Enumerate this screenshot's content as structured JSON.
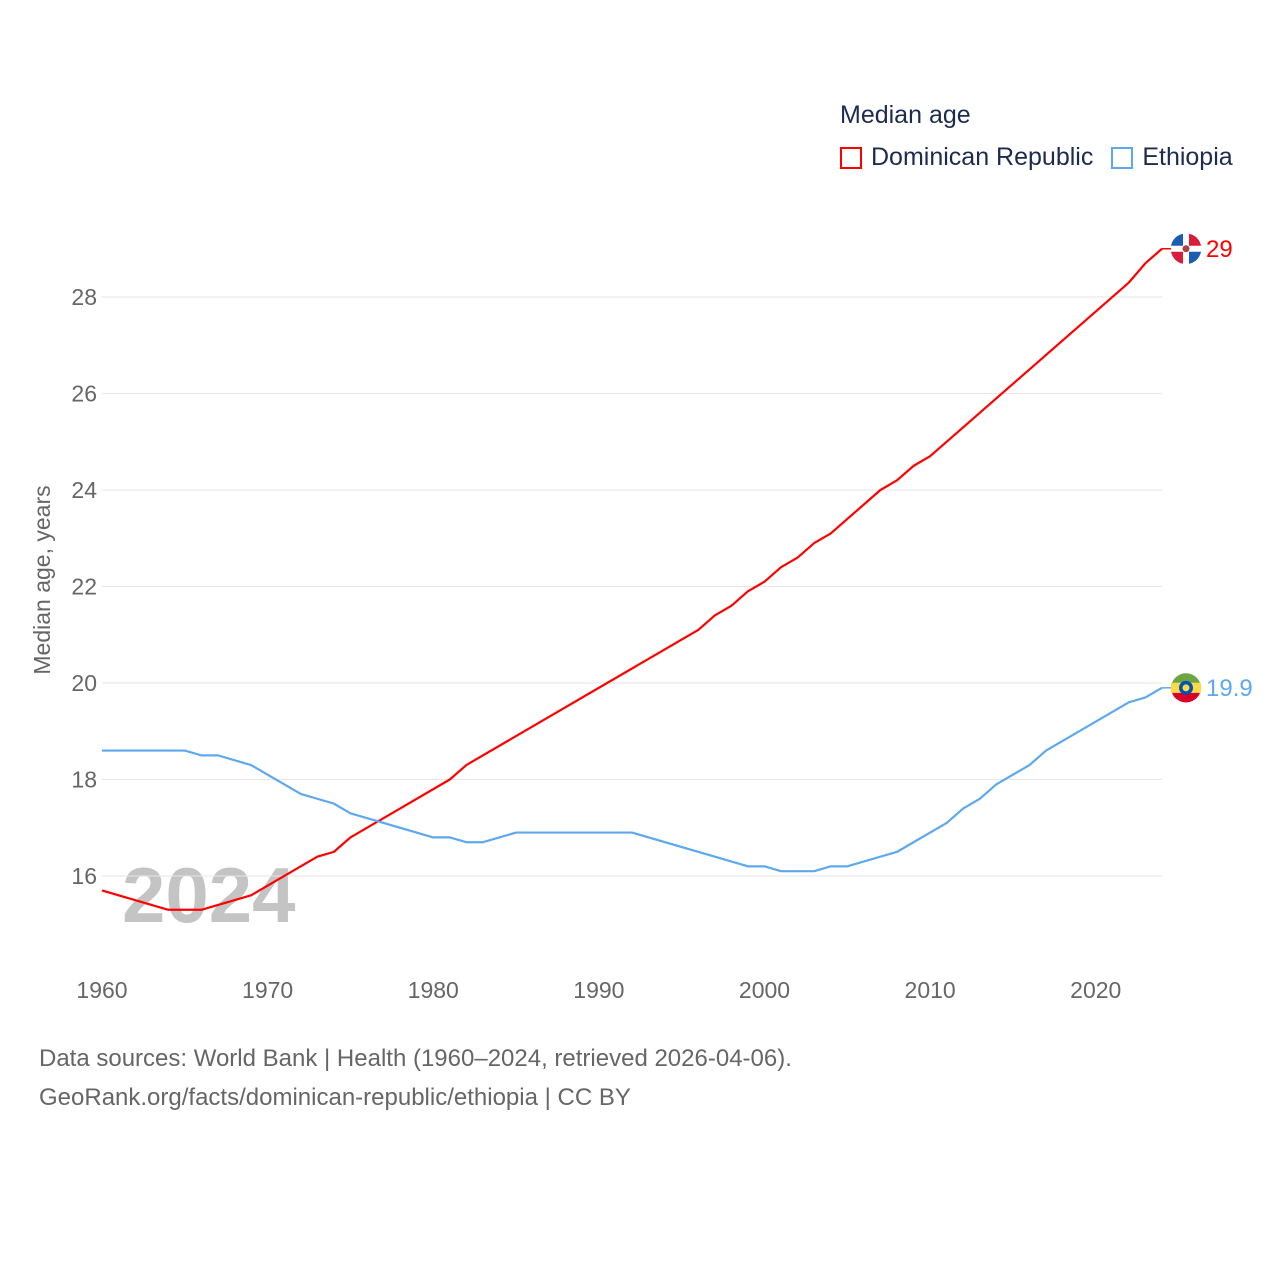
{
  "chart_data": {
    "type": "line",
    "title": "Median age",
    "ylabel": "Median age, years",
    "xlabel": "",
    "xlim": [
      1960,
      2024
    ],
    "ylim": [
      14.2,
      29.5
    ],
    "yticks": [
      16,
      18,
      20,
      22,
      24,
      26,
      28
    ],
    "xticks": [
      1960,
      1970,
      1980,
      1990,
      2000,
      2010,
      2020
    ],
    "year_watermark": "2024",
    "grid": true,
    "legend_position": "top-right",
    "series": [
      {
        "name": "Dominican Republic",
        "color": "#ff0000",
        "end_label": "29",
        "points": [
          [
            1960,
            15.7
          ],
          [
            1964,
            15.3
          ],
          [
            1966,
            15.3
          ],
          [
            1969,
            15.6
          ],
          [
            1973,
            16.4
          ],
          [
            1974,
            16.5
          ],
          [
            1975,
            16.8
          ],
          [
            1981,
            18.0
          ],
          [
            1982,
            18.3
          ],
          [
            1996,
            21.1
          ],
          [
            1997,
            21.4
          ],
          [
            1998,
            21.6
          ],
          [
            1999,
            21.9
          ],
          [
            2000,
            22.1
          ],
          [
            2001,
            22.4
          ],
          [
            2002,
            22.6
          ],
          [
            2003,
            22.9
          ],
          [
            2004,
            23.1
          ],
          [
            2007,
            24.0
          ],
          [
            2008,
            24.2
          ],
          [
            2009,
            24.5
          ],
          [
            2010,
            24.7
          ],
          [
            2022,
            28.3
          ],
          [
            2023,
            28.7
          ],
          [
            2024,
            29.0
          ]
        ]
      },
      {
        "name": "Ethiopia",
        "color": "#5ea8ee",
        "end_label": "19.9",
        "points": [
          [
            1960,
            18.6
          ],
          [
            1965,
            18.6
          ],
          [
            1966,
            18.5
          ],
          [
            1967,
            18.5
          ],
          [
            1969,
            18.3
          ],
          [
            1972,
            17.7
          ],
          [
            1974,
            17.5
          ],
          [
            1975,
            17.3
          ],
          [
            1980,
            16.8
          ],
          [
            1981,
            16.8
          ],
          [
            1982,
            16.7
          ],
          [
            1983,
            16.7
          ],
          [
            1985,
            16.9
          ],
          [
            1992,
            16.9
          ],
          [
            1999,
            16.2
          ],
          [
            2000,
            16.2
          ],
          [
            2001,
            16.1
          ],
          [
            2003,
            16.1
          ],
          [
            2004,
            16.2
          ],
          [
            2005,
            16.2
          ],
          [
            2008,
            16.5
          ],
          [
            2011,
            17.1
          ],
          [
            2012,
            17.4
          ],
          [
            2013,
            17.6
          ],
          [
            2014,
            17.9
          ],
          [
            2016,
            18.3
          ],
          [
            2017,
            18.6
          ],
          [
            2022,
            19.6
          ],
          [
            2023,
            19.7
          ],
          [
            2024,
            19.9
          ]
        ]
      }
    ]
  },
  "sources": {
    "line1": "Data sources: World Bank | Health (1960–2024, retrieved 2026-04-06).",
    "line2": "GeoRank.org/facts/dominican-republic/ethiopia | CC BY"
  }
}
